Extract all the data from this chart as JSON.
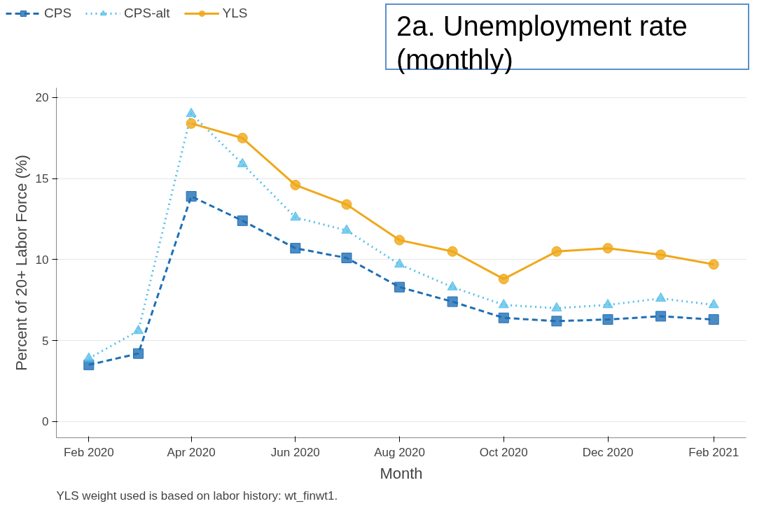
{
  "chart_data": {
    "type": "line",
    "title": "2a. Unemployment rate (monthly)",
    "xlabel": "Month",
    "ylabel": "Percent of 20+ Labor Force (%)",
    "annotations": [
      "YLS weight used is based on labor history: wt_finwt1."
    ],
    "x": [
      "2020-02",
      "2020-03",
      "2020-04",
      "2020-05",
      "2020-06",
      "2020-07",
      "2020-08",
      "2020-09",
      "2020-10",
      "2020-11",
      "2020-12",
      "2021-01",
      "2021-02"
    ],
    "series": [
      {
        "name": "CPS",
        "color": "#1f6fb5",
        "marker": "square",
        "line_style": "dashed",
        "values": [
          3.5,
          4.2,
          13.9,
          12.4,
          10.7,
          10.1,
          8.3,
          7.4,
          6.4,
          6.2,
          6.3,
          6.5,
          6.3
        ]
      },
      {
        "name": "CPS-alt",
        "color": "#5bc0eb",
        "marker": "triangle",
        "line_style": "dotted",
        "values": [
          3.9,
          5.6,
          19.0,
          15.9,
          12.6,
          11.8,
          9.7,
          8.3,
          7.2,
          7.0,
          7.2,
          7.6,
          7.2
        ]
      },
      {
        "name": "YLS",
        "color": "#f0a818",
        "marker": "circle",
        "line_style": "solid",
        "values": [
          null,
          null,
          18.4,
          17.5,
          14.6,
          13.4,
          11.2,
          10.5,
          8.8,
          10.5,
          10.7,
          10.3,
          9.7
        ]
      }
    ],
    "xlim": [
      "2020-01-13",
      "2021-02-20"
    ],
    "ylim": [
      -1,
      20.6
    ],
    "xticks": [
      {
        "value": "2020-02",
        "label": "Feb 2020"
      },
      {
        "value": "2020-04",
        "label": "Apr 2020"
      },
      {
        "value": "2020-06",
        "label": "Jun 2020"
      },
      {
        "value": "2020-08",
        "label": "Aug 2020"
      },
      {
        "value": "2020-10",
        "label": "Oct 2020"
      },
      {
        "value": "2020-12",
        "label": "Dec 2020"
      },
      {
        "value": "2021-02",
        "label": "Feb 2021"
      }
    ],
    "yticks": [
      0,
      5,
      10,
      15,
      20
    ],
    "grid": "y",
    "legend": "top left"
  }
}
